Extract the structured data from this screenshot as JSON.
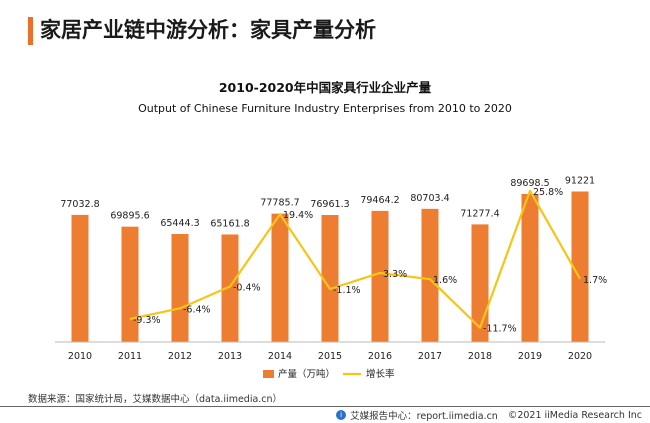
{
  "header": {
    "title": "家居产业链中游分析：家具产量分析"
  },
  "source_text": "数据来源：国家统计局，艾媒数据中心（data.iimedia.cn）",
  "footer": {
    "org": "艾媒报告中心：report.iimedia.cn",
    "copyright": "©2021  iiMedia Research  Inc"
  },
  "colors": {
    "bar": "#ed7d31",
    "line": "#f5c518",
    "accent": "#e8702a"
  },
  "chart_data": {
    "type": "bar",
    "title": "2010-2020年中国家具行业企业产量",
    "subtitle": "Output of Chinese Furniture Industry Enterprises from 2010 to 2020",
    "categories": [
      "2010",
      "2011",
      "2012",
      "2013",
      "2014",
      "2015",
      "2016",
      "2017",
      "2018",
      "2019",
      "2020"
    ],
    "series": [
      {
        "name": "产量（万吨）",
        "type": "bar",
        "values": [
          77032.8,
          69895.6,
          65444.3,
          65161.8,
          77785.7,
          76961.3,
          79464.2,
          80703.4,
          71277.4,
          89698.5,
          91221
        ],
        "labels": [
          "77032.8",
          "69895.6",
          "65444.3",
          "65161.8",
          "77785.7",
          "76961.3",
          "79464.2",
          "80703.4",
          "71277.4",
          "89698.5",
          "91221"
        ]
      },
      {
        "name": "增长率",
        "type": "line",
        "values": [
          null,
          -9.3,
          -6.4,
          -0.4,
          19.4,
          -1.1,
          3.3,
          1.6,
          -11.7,
          25.8,
          1.7
        ],
        "labels": [
          "",
          "-9.3%",
          "-6.4%",
          "-0.4%",
          "19.4%",
          "-1.1%",
          "3.3%",
          "1.6%",
          "-11.7%",
          "25.8%",
          "1.7%"
        ]
      }
    ],
    "bar_axis_range": [
      0,
      100000
    ],
    "line_axis_range": [
      -20,
      30
    ],
    "grid": false,
    "legend": "bottom-center"
  }
}
